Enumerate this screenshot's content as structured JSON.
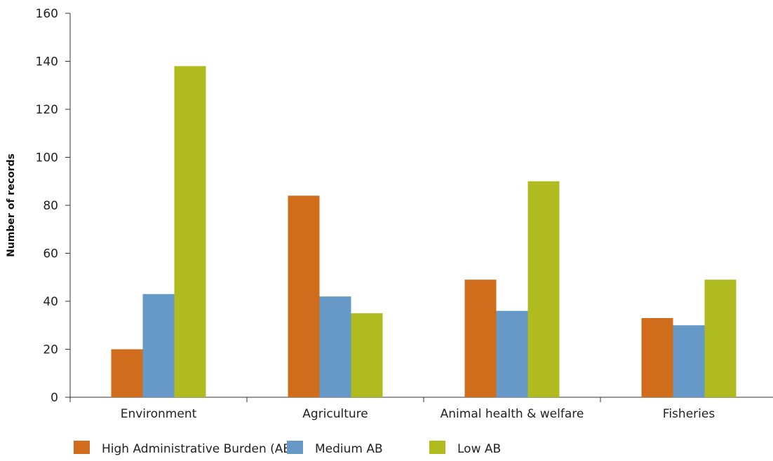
{
  "chart_data": {
    "type": "bar",
    "categories": [
      "Environment",
      "Agriculture",
      "Animal health & welfare",
      "Fisheries"
    ],
    "series": [
      {
        "name": "High Administrative Burden (AB)",
        "color": "#cf6d1c",
        "values": [
          20,
          84,
          49,
          33
        ]
      },
      {
        "name": "Medium AB",
        "color": "#6699c8",
        "values": [
          43,
          42,
          36,
          30
        ]
      },
      {
        "name": "Low AB",
        "color": "#b0bb1f",
        "values": [
          138,
          35,
          90,
          49
        ]
      }
    ],
    "title": "",
    "xlabel": "",
    "ylabel": "Number of records",
    "ylim": [
      0,
      160
    ],
    "yticks": [
      0,
      20,
      40,
      60,
      80,
      100,
      120,
      140,
      160
    ],
    "grid": false,
    "legend_position": "bottom"
  }
}
